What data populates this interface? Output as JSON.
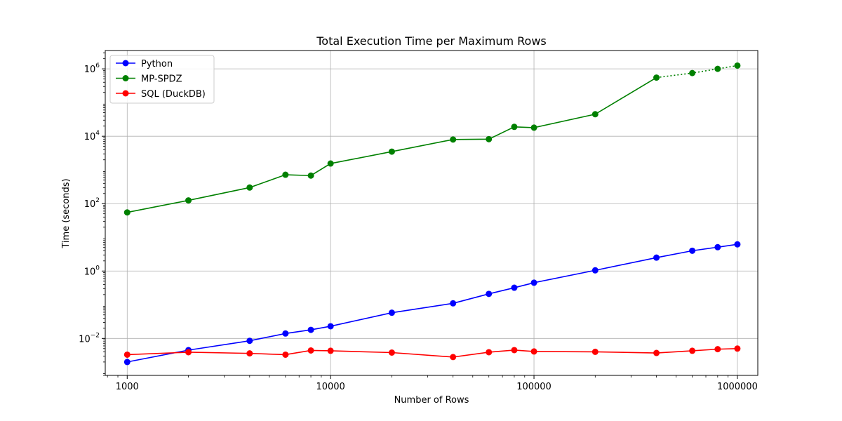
{
  "chart_data": {
    "type": "line",
    "title": "Total Execution Time per Maximum Rows",
    "xlabel": "Number of Rows",
    "ylabel": "Time (seconds)",
    "xscale": "log",
    "yscale": "log",
    "xlim": [
      780,
      1260000
    ],
    "ylim": [
      0.0008,
      3500000
    ],
    "grid": true,
    "legend_position": "top-left",
    "xticks": [
      {
        "value": 1000,
        "label": "1000"
      },
      {
        "value": 10000,
        "label": "10000"
      },
      {
        "value": 100000,
        "label": "100000"
      },
      {
        "value": 1000000,
        "label": "1000000"
      }
    ],
    "yticks": [
      {
        "value": 0.01,
        "base": "10",
        "exp": "−2"
      },
      {
        "value": 1,
        "base": "10",
        "exp": "0"
      },
      {
        "value": 100,
        "base": "10",
        "exp": "2"
      },
      {
        "value": 10000,
        "base": "10",
        "exp": "4"
      },
      {
        "value": 1000000,
        "base": "10",
        "exp": "6"
      }
    ],
    "series": [
      {
        "name": "Python",
        "color": "#0000ff",
        "x": [
          1000,
          2000,
          4000,
          6000,
          8000,
          10000,
          20000,
          40000,
          60000,
          80000,
          100000,
          200000,
          400000,
          600000,
          800000,
          1000000
        ],
        "y": [
          0.002,
          0.0045,
          0.0085,
          0.014,
          0.018,
          0.023,
          0.058,
          0.11,
          0.21,
          0.32,
          0.45,
          1.05,
          2.5,
          4.0,
          5.1,
          6.2
        ]
      },
      {
        "name": "MP-SPDZ",
        "color": "#008000",
        "dotted_from": 400000,
        "x": [
          1000,
          2000,
          4000,
          6000,
          8000,
          10000,
          20000,
          40000,
          60000,
          80000,
          100000,
          200000,
          400000,
          600000,
          800000,
          1000000
        ],
        "y": [
          55,
          125,
          300,
          720,
          680,
          1550,
          3500,
          8000,
          8200,
          19000,
          18000,
          45000,
          550000,
          750000,
          1000000,
          1250000
        ]
      },
      {
        "name": "SQL (DuckDB)",
        "color": "#ff0000",
        "x": [
          1000,
          2000,
          4000,
          6000,
          8000,
          10000,
          20000,
          40000,
          60000,
          80000,
          100000,
          200000,
          400000,
          600000,
          800000,
          1000000
        ],
        "y": [
          0.0033,
          0.0039,
          0.0036,
          0.0033,
          0.0044,
          0.0043,
          0.0038,
          0.0028,
          0.0039,
          0.0045,
          0.0041,
          0.004,
          0.0037,
          0.0043,
          0.0048,
          0.005
        ]
      }
    ]
  }
}
